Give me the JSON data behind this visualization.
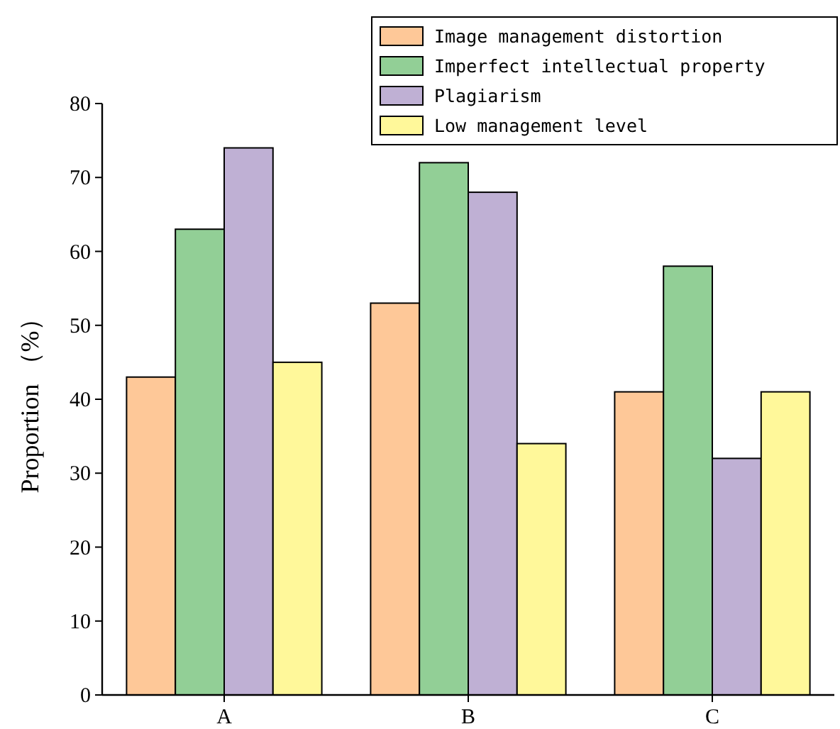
{
  "chart_data": {
    "type": "bar",
    "ylabel": "Proportion （%）",
    "categories": [
      "A",
      "B",
      "C"
    ],
    "series": [
      {
        "name": "Image management distortion",
        "color": "#fec898",
        "values": [
          43,
          53,
          41
        ]
      },
      {
        "name": "Imperfect intellectual property",
        "color": "#92cf96",
        "values": [
          63,
          72,
          58
        ]
      },
      {
        "name": "Plagiarism",
        "color": "#bfb0d4",
        "values": [
          74,
          68,
          32
        ]
      },
      {
        "name": "Low management level",
        "color": "#fff89a",
        "values": [
          45,
          34,
          41
        ]
      }
    ],
    "ylim": [
      0,
      80
    ],
    "yticks": [
      0,
      10,
      20,
      30,
      40,
      50,
      60,
      70,
      80
    ],
    "grid": false,
    "legend": "top right"
  }
}
